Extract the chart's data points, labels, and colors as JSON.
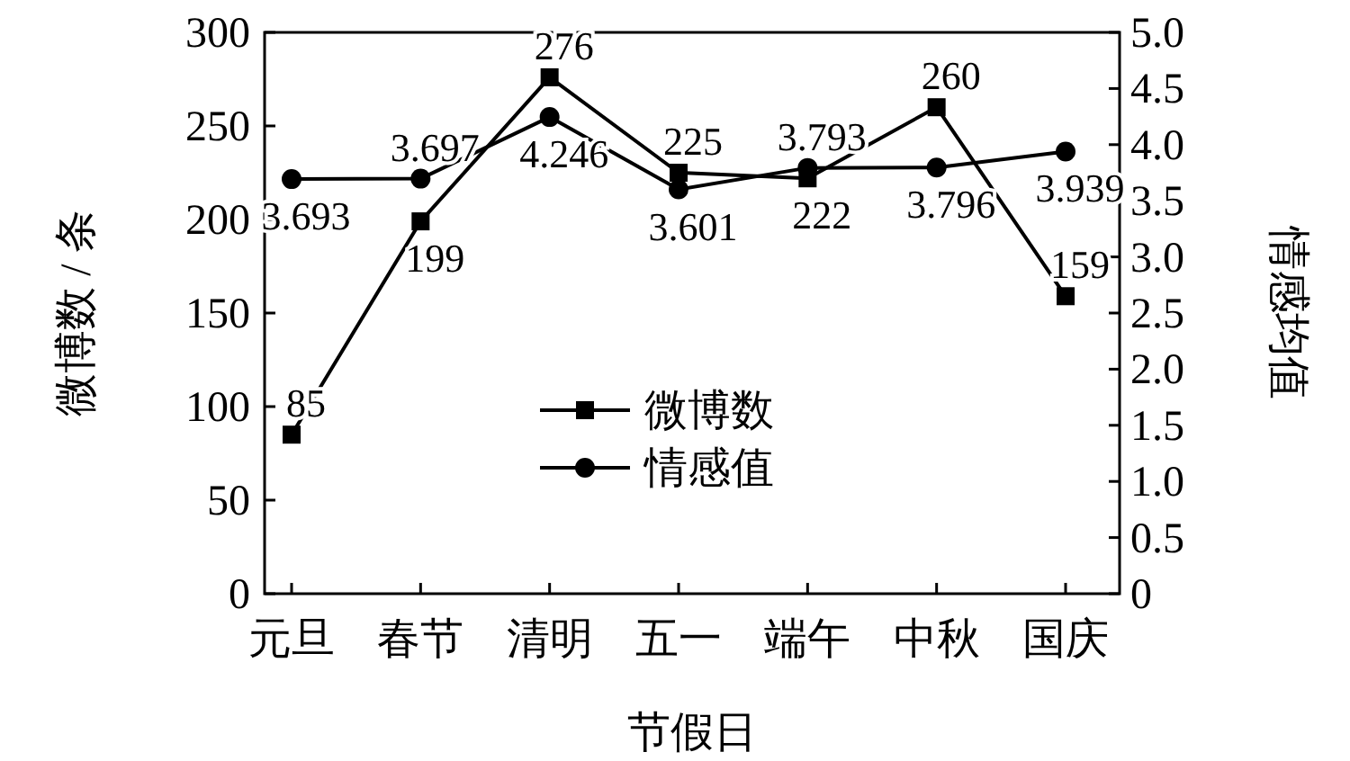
{
  "chart_data": {
    "type": "line",
    "xlabel": "节假日",
    "ylabel": "微博数 / 条",
    "y2label": "情感均值",
    "categories": [
      "元旦",
      "春节",
      "清明",
      "五一",
      "端午",
      "中秋",
      "国庆"
    ],
    "series": [
      {
        "name": "微博数",
        "color": "#000000",
        "marker": "square",
        "values": [
          85,
          199,
          276,
          225,
          222,
          260,
          159
        ]
      },
      {
        "name": "情感值",
        "color": "#000000",
        "marker": "circle",
        "axis": "y2",
        "values": [
          3.693,
          3.697,
          4.246,
          3.601,
          3.793,
          3.796,
          3.939
        ]
      }
    ],
    "ylim": [
      0,
      300
    ],
    "yticks": [
      0,
      50,
      100,
      150,
      200,
      250,
      300
    ],
    "y2lim": [
      0,
      5
    ],
    "y2ticks": [
      0,
      0.5,
      {
        "value": 1,
        "label": "1.0"
      },
      1.5,
      {
        "value": 2,
        "label": "2.0"
      },
      2.5,
      {
        "value": 3,
        "label": "3.0"
      },
      3.5,
      {
        "value": 4,
        "label": "4.0"
      },
      4.5,
      {
        "value": 5,
        "label": "5.0"
      }
    ],
    "data_labels": true,
    "legend": "bottom",
    "grid": false,
    "line_style": "solid"
  }
}
